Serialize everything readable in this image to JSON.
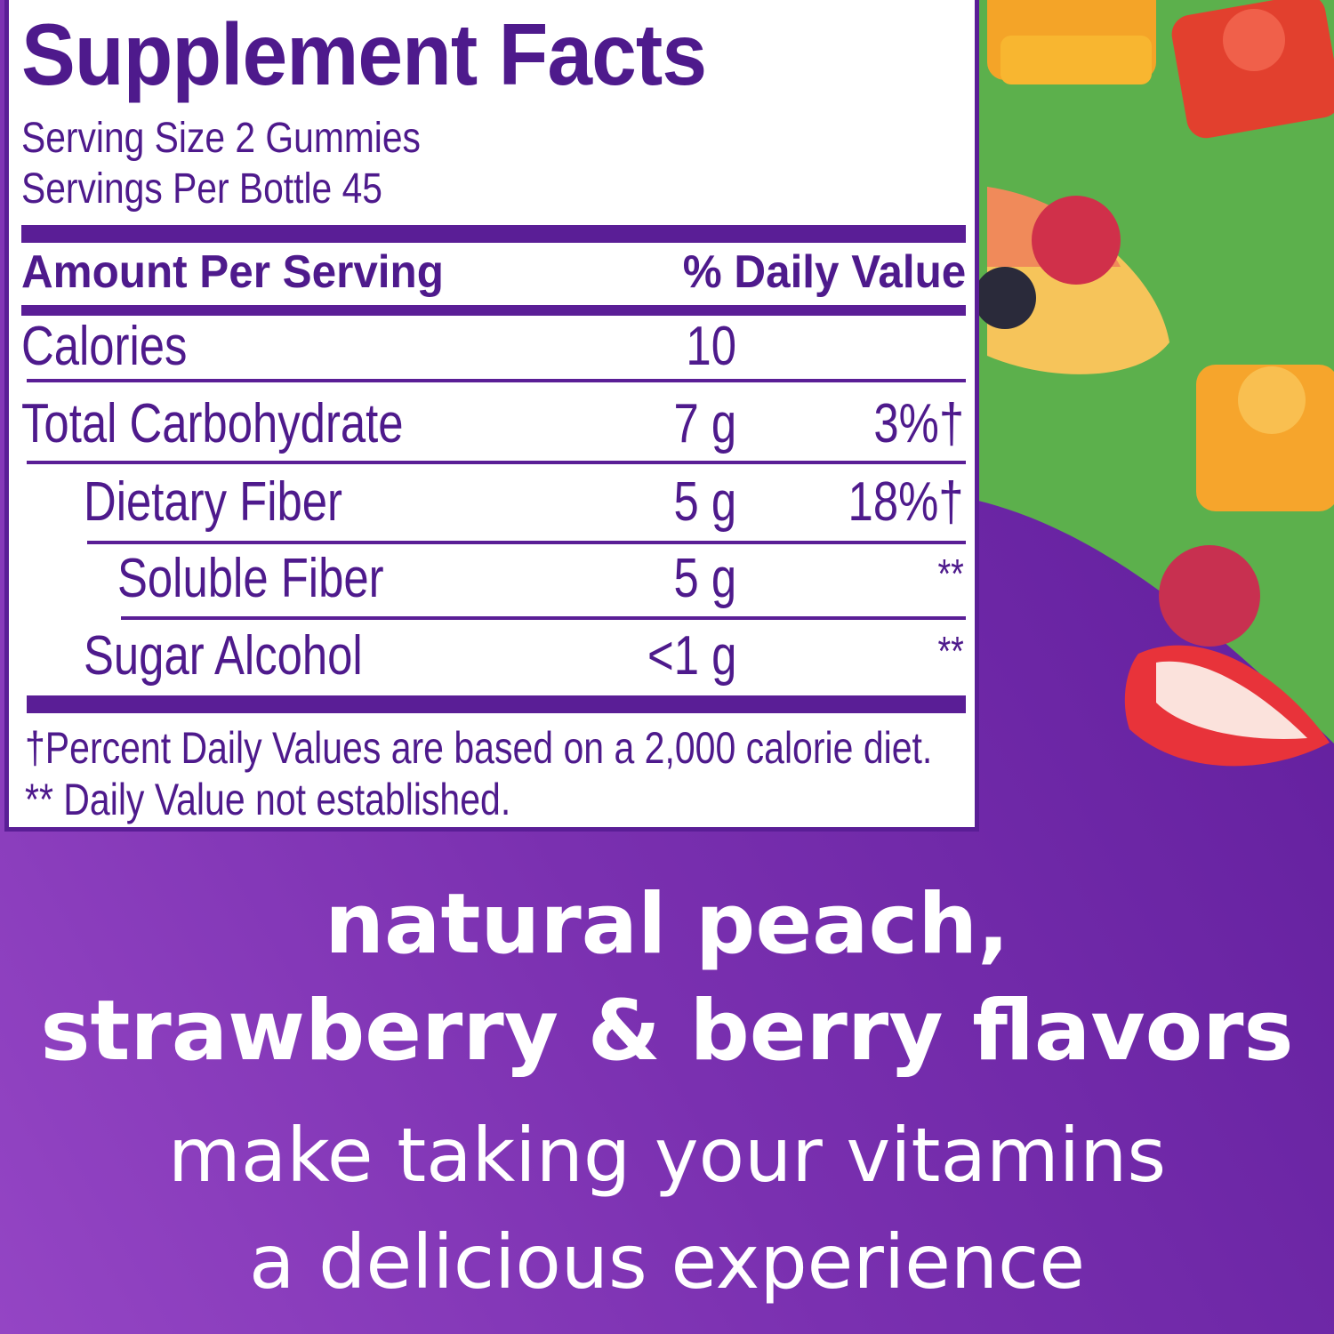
{
  "label": {
    "title": "Supplement Facts",
    "serving_size": "Serving Size 2 Gummies",
    "servings_per": "Servings Per Bottle 45",
    "header_amount": "Amount Per Serving",
    "header_dv": "% Daily Value",
    "rows": [
      {
        "name": "Calories",
        "amount": "10",
        "dv": ""
      },
      {
        "name": "Total Carbohydrate",
        "amount": "7 g",
        "dv": "3%†"
      },
      {
        "name": "Dietary Fiber",
        "amount": "5 g",
        "dv": "18%†"
      },
      {
        "name": "Soluble Fiber",
        "amount": "5 g",
        "dv": "**"
      },
      {
        "name": "Sugar Alcohol",
        "amount": "<1 g",
        "dv": "**"
      }
    ],
    "footnote_1": "†Percent Daily Values are based on a 2,000 calorie diet.",
    "footnote_2": "** Daily Value not established."
  },
  "tagline": {
    "line1": "natural peach,",
    "line2": "strawberry & berry flavors",
    "line3": "make taking your vitamins",
    "line4": "a delicious experience"
  },
  "colors": {
    "purple": "#5a1e96",
    "green": "#5cb04c",
    "text_purple": "#4e1a8c"
  }
}
